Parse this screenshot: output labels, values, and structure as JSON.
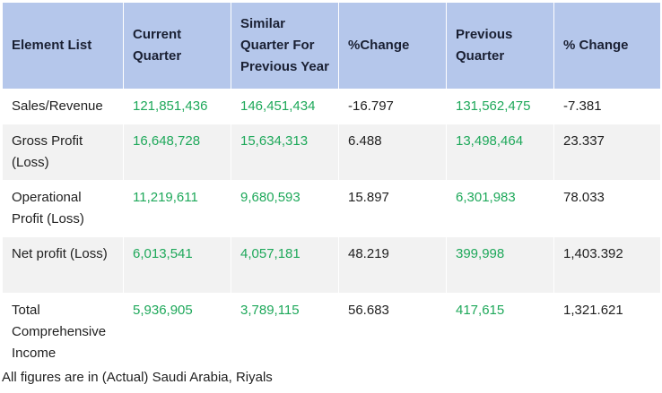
{
  "table": {
    "headers": [
      "Element List",
      "Current Quarter",
      "Similar Quarter For Previous Year",
      "%Change",
      "Previous Quarter",
      "% Change"
    ],
    "rows": [
      {
        "label": "Sales/Revenue",
        "current_quarter": "121,851,436",
        "similar_quarter_prev_year": "146,451,434",
        "change_yoy": "-16.797",
        "previous_quarter": "131,562,475",
        "change_qoq": "-7.381"
      },
      {
        "label": "Gross Profit (Loss)",
        "current_quarter": "16,648,728",
        "similar_quarter_prev_year": "15,634,313",
        "change_yoy": "6.488",
        "previous_quarter": "13,498,464",
        "change_qoq": "23.337"
      },
      {
        "label": "Operational Profit (Loss)",
        "current_quarter": "11,219,611",
        "similar_quarter_prev_year": "9,680,593",
        "change_yoy": "15.897",
        "previous_quarter": "6,301,983",
        "change_qoq": "78.033"
      },
      {
        "label": "Net profit (Loss)",
        "current_quarter": "6,013,541",
        "similar_quarter_prev_year": "4,057,181",
        "change_yoy": "48.219",
        "previous_quarter": "399,998",
        "change_qoq": "1,403.392"
      },
      {
        "label": "Total Comprehensive Income",
        "current_quarter": "5,936,905",
        "similar_quarter_prev_year": "3,789,115",
        "change_yoy": "56.683",
        "previous_quarter": "417,615",
        "change_qoq": "1,321.621"
      }
    ]
  },
  "footnote": "All figures are in (Actual) Saudi Arabia, Riyals",
  "colors": {
    "header_background": "#b5c7eb",
    "value_green": "#1ea85a",
    "row_stripe": "#f2f2f2"
  }
}
